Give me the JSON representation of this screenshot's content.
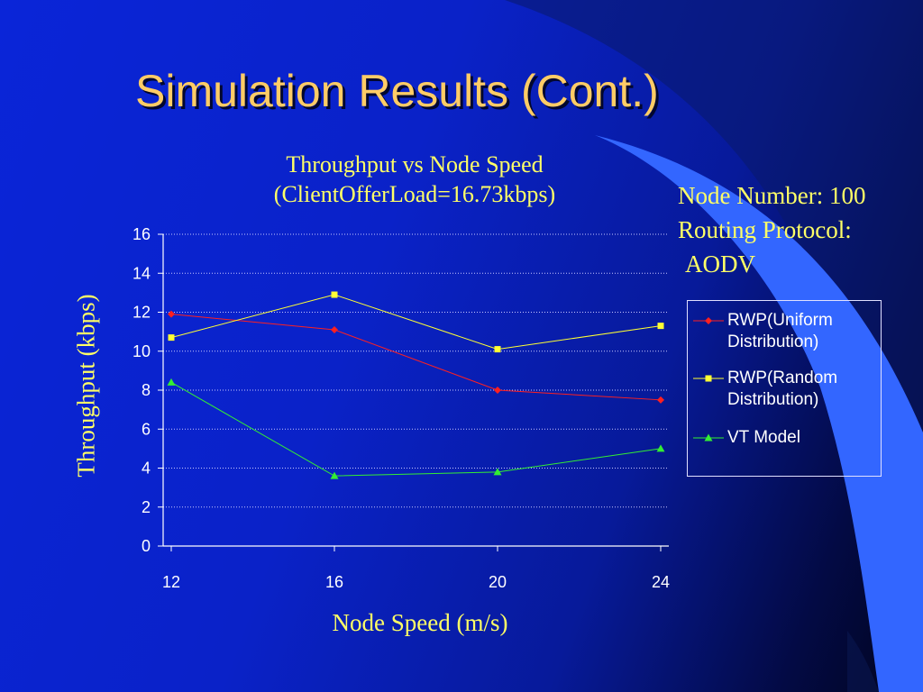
{
  "slide": {
    "title": "Simulation Results (Cont.)",
    "info_lines": [
      "Node Number: 100",
      "Routing Protocol:",
      "AODV"
    ]
  },
  "colors": {
    "title": "#ffcc66",
    "annotation": "#ffff66",
    "background": "#0a22c8",
    "series_red": "#ff2020",
    "series_yellow": "#ffff33",
    "series_green": "#33ee33"
  },
  "chart_data": {
    "type": "line",
    "title": "Throughput vs Node Speed",
    "subtitle": "(ClientOfferLoad=16.73kbps)",
    "xlabel": "Node Speed (m/s)",
    "ylabel": "Throughput (kbps)",
    "x": [
      12,
      16,
      20,
      24
    ],
    "ylim": [
      0,
      16
    ],
    "yticks": [
      0,
      2,
      4,
      6,
      8,
      10,
      12,
      14,
      16
    ],
    "grid": true,
    "legend_position": "right",
    "series": [
      {
        "name": "RWP(Uniform Distribution)",
        "values": [
          11.9,
          11.1,
          8.0,
          7.5
        ],
        "marker": "diamond",
        "color": "#ff2020"
      },
      {
        "name": "RWP(Random Distribution)",
        "values": [
          10.7,
          12.9,
          10.1,
          11.3
        ],
        "marker": "square",
        "color": "#ffff33"
      },
      {
        "name": "VT Model",
        "values": [
          8.4,
          3.6,
          3.8,
          5.0
        ],
        "marker": "triangle",
        "color": "#33ee33"
      }
    ]
  }
}
